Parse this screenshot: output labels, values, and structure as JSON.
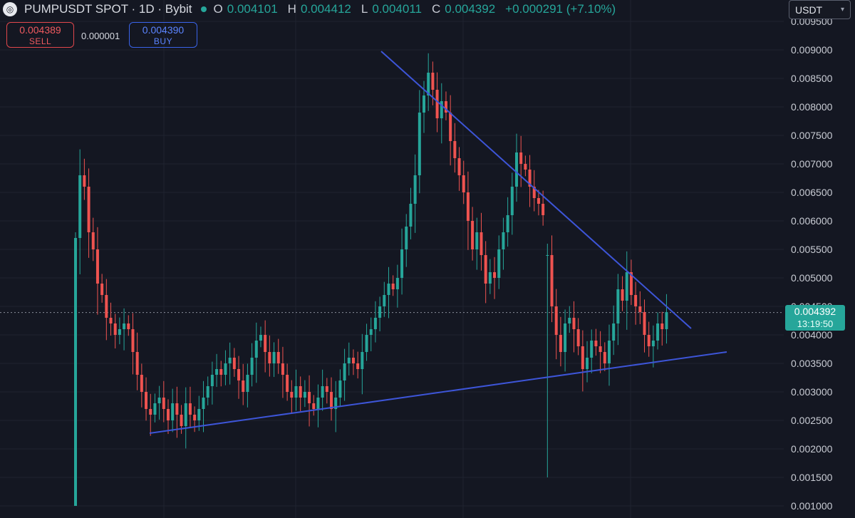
{
  "header": {
    "title": "PUMPUSDT SPOT · 1D · Bybit",
    "open_label": "O",
    "open": "0.004101",
    "high_label": "H",
    "high": "0.004412",
    "low_label": "L",
    "low": "0.004011",
    "close_label": "C",
    "close": "0.004392",
    "change": "+0.000291 (+7.10%)"
  },
  "trade": {
    "sell_price": "0.004389",
    "sell_label": "SELL",
    "spread": "0.000001",
    "buy_price": "0.004390",
    "buy_label": "BUY"
  },
  "currency_select": {
    "value": "USDT"
  },
  "last_price": {
    "price": "0.004392",
    "countdown": "13:19:50"
  },
  "colors": {
    "up": "#26a69a",
    "down": "#ef5350",
    "trendline": "#3d55d8",
    "background": "#141722"
  },
  "chart_data": {
    "type": "candlestick",
    "ylim": [
      0.00095,
      0.0099
    ],
    "yticks": [
      "0.009500",
      "0.009000",
      "0.008500",
      "0.008000",
      "0.007500",
      "0.007000",
      "0.006500",
      "0.006000",
      "0.005500",
      "0.005000",
      "0.004500",
      "0.004000",
      "0.003500",
      "0.003000",
      "0.002500",
      "0.002000",
      "0.001500",
      "0.001000"
    ],
    "last_price": 0.004392,
    "trendlines": [
      {
        "name": "resistance",
        "from": [
          0,
          0.009
        ],
        "to": [
          134,
          0.0041
        ]
      },
      {
        "name": "support",
        "from": [
          0,
          0.0023
        ],
        "to": [
          134,
          0.0037
        ]
      }
    ],
    "closes": [
      0.0057,
      0.0068,
      0.0066,
      0.0058,
      0.0055,
      0.0049,
      0.0047,
      0.0043,
      0.0042,
      0.004,
      0.0041,
      0.0042,
      0.0041,
      0.0037,
      0.0033,
      0.003,
      0.0027,
      0.0026,
      0.0028,
      0.0029,
      0.0027,
      0.0025,
      0.0028,
      0.0026,
      0.0024,
      0.0028,
      0.0026,
      0.0025,
      0.0027,
      0.0029,
      0.0031,
      0.0033,
      0.0034,
      0.0033,
      0.0035,
      0.0036,
      0.0034,
      0.0032,
      0.003,
      0.0033,
      0.0036,
      0.0039,
      0.004,
      0.0037,
      0.0035,
      0.0037,
      0.0035,
      0.0033,
      0.003,
      0.0029,
      0.0031,
      0.0029,
      0.003,
      0.0028,
      0.0027,
      0.0029,
      0.0031,
      0.003,
      0.0027,
      0.0029,
      0.0032,
      0.0035,
      0.0036,
      0.0035,
      0.0034,
      0.0037,
      0.004,
      0.0041,
      0.0043,
      0.0045,
      0.0047,
      0.0049,
      0.0048,
      0.005,
      0.0055,
      0.0059,
      0.0063,
      0.0068,
      0.0079,
      0.0082,
      0.0086,
      0.0083,
      0.0078,
      0.0081,
      0.0079,
      0.0074,
      0.0071,
      0.0068,
      0.0065,
      0.006,
      0.0055,
      0.0058,
      0.0054,
      0.0049,
      0.0051,
      0.005,
      0.0055,
      0.0058,
      0.0061,
      0.0066,
      0.0072,
      0.007,
      0.0069,
      0.0066,
      0.0064,
      0.0063,
      0.0061,
      0.0054,
      0.0045,
      0.004,
      0.0037,
      0.0042,
      0.0043,
      0.0041,
      0.0038,
      0.0034,
      0.0036,
      0.0039,
      0.0038,
      0.0037,
      0.0035,
      0.0039,
      0.0042,
      0.0048,
      0.0046,
      0.0051,
      0.0047,
      0.0045,
      0.0044,
      0.004,
      0.0038,
      0.0039,
      0.0042,
      0.0041,
      0.0044
    ]
  }
}
